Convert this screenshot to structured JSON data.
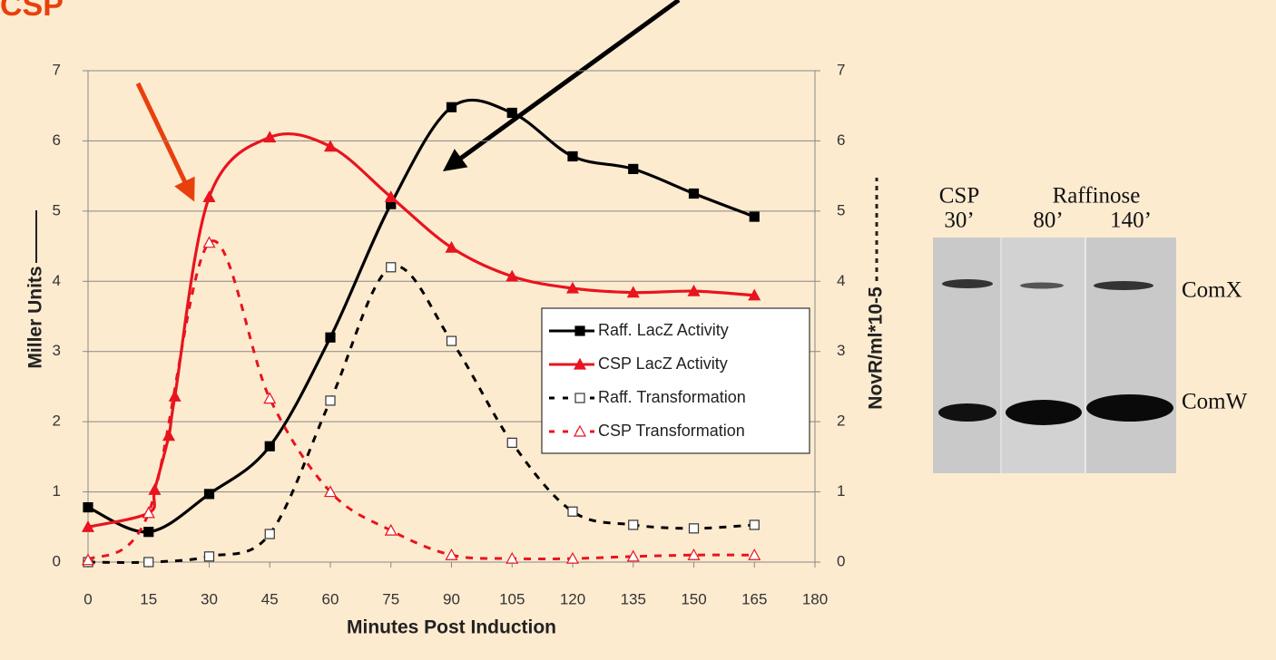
{
  "chart_data": {
    "type": "line",
    "annotation": "CSP",
    "xlabel": "Minutes Post Induction",
    "ylabel": "Miller Units",
    "y2label": "NovR/ml*10-5",
    "xlim": [
      0,
      180
    ],
    "xticks": [
      0,
      15,
      30,
      45,
      60,
      75,
      90,
      105,
      120,
      135,
      150,
      165,
      180
    ],
    "ylim": [
      0,
      7
    ],
    "yticks": [
      0,
      1,
      2,
      3,
      4,
      5,
      6,
      7
    ],
    "y2lim": [
      0,
      7
    ],
    "y2ticks": [
      0,
      1,
      2,
      3,
      4,
      5,
      6,
      7
    ],
    "grid": true,
    "legend": "right",
    "series": [
      {
        "name": "Raff. LacZ Activity",
        "color": "#000000",
        "style": "solid",
        "marker": "square",
        "filled": true,
        "x": [
          0,
          15,
          30,
          45,
          60,
          75,
          90,
          105,
          120,
          135,
          150,
          165
        ],
        "values": [
          0.78,
          0.43,
          0.97,
          1.65,
          3.2,
          5.1,
          6.48,
          6.4,
          5.78,
          5.6,
          5.25,
          4.92
        ]
      },
      {
        "name": "CSP LacZ Activity",
        "color": "#e8141e",
        "style": "solid",
        "marker": "triangle",
        "filled": true,
        "x": [
          0,
          15,
          16.5,
          20,
          21.5,
          30,
          45,
          60,
          75,
          90,
          105,
          120,
          135,
          150,
          165
        ],
        "values": [
          0.5,
          0.7,
          1.03,
          1.8,
          2.36,
          5.2,
          6.05,
          5.92,
          5.2,
          4.48,
          4.07,
          3.9,
          3.84,
          3.86,
          3.8
        ]
      },
      {
        "name": "Raff. Transformation",
        "color": "#000000",
        "style": "dashed",
        "marker": "square",
        "filled": false,
        "axis": "y2",
        "x": [
          0,
          15,
          30,
          45,
          60,
          75,
          90,
          105,
          120,
          135,
          150,
          165
        ],
        "values": [
          0,
          0,
          0.08,
          0.4,
          2.3,
          4.2,
          3.15,
          1.7,
          0.72,
          0.53,
          0.48,
          0.53
        ]
      },
      {
        "name": "CSP Transformation",
        "color": "#e8141e",
        "style": "dashed",
        "marker": "triangle",
        "filled": false,
        "axis": "y2",
        "x": [
          0,
          15,
          30,
          45,
          60,
          75,
          90,
          105,
          120,
          135,
          150,
          165
        ],
        "values": [
          0.03,
          0.7,
          4.55,
          2.33,
          1.0,
          0.45,
          0.1,
          0.05,
          0.05,
          0.08,
          0.1,
          0.1
        ]
      }
    ]
  },
  "gel": {
    "lanes": [
      "CSP",
      "Raffinose"
    ],
    "times": [
      "30’",
      "80’",
      "140’"
    ],
    "bands": [
      "ComX",
      "ComW"
    ]
  }
}
